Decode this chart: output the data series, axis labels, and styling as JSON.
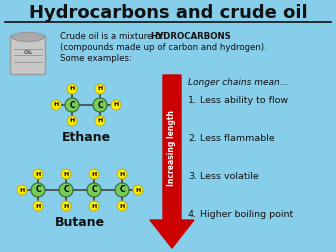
{
  "bg_color": "#87CEEB",
  "title": "Hydrocarbons and crude oil",
  "title_fontsize": 13,
  "body_text_line1_pre": "Crude oil is a mixture of ",
  "body_text_line1_bold": "HYDROCARBONS",
  "body_text_line2": "(compounds made up of carbon and hydrogen).",
  "body_text_line3": "Some examples:",
  "longer_chains_text": "Longer chains mean...",
  "list_items": [
    "Less ability to flow",
    "Less flammable",
    "Less volatile",
    "Higher boiling point"
  ],
  "arrow_label": "Increasing length",
  "arrow_color": "#CC0000",
  "ethane_label": "Ethane",
  "butane_label": "Butane",
  "carbon_color": "#77CC55",
  "hydrogen_color": "#FFEE00",
  "carbon_edge": "#336633",
  "hydrogen_edge": "#BBAA00",
  "bond_color": "#444444",
  "text_color": "#111111",
  "barrel_body_color": "#C8C8C8",
  "barrel_top_color": "#AAAAAA",
  "barrel_stripe_color": "#999999"
}
